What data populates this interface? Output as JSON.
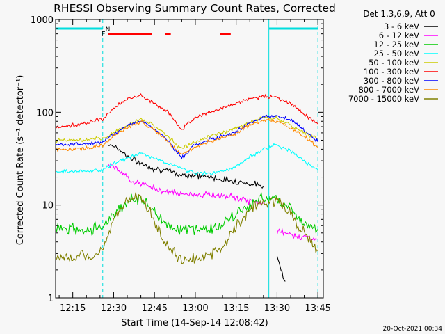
{
  "chart_data": {
    "type": "line",
    "title": "RHESSI Observing Summary Count Rates, Corrected",
    "xlabel": "Start Time (14-Sep-14 12:08:42)",
    "ylabel": "Corrected Count Rate (s⁻¹ detector⁻¹)",
    "y_scale": "log",
    "ylim": [
      1,
      1000
    ],
    "xlim": [
      "12:08:42",
      "13:47:00"
    ],
    "x_ticks": [
      "12:15",
      "12:30",
      "12:45",
      "13:00",
      "13:15",
      "13:30",
      "13:45"
    ],
    "y_ticks": [
      "1",
      "10",
      "100",
      "1000"
    ],
    "legend_title": "Det 1,3,6,9, Att 0",
    "legend_position": "right",
    "timestamp": "20-Oct-2021 00:34",
    "flag_labels": {
      "night": "N",
      "flare": "F"
    },
    "night_intervals": [
      [
        "12:08:42",
        "12:26:00"
      ],
      [
        "13:27:00",
        "13:45:00"
      ]
    ],
    "flare_intervals": [
      [
        "12:28:00",
        "12:44:00"
      ],
      [
        "12:49:00",
        "12:51:00"
      ],
      [
        "13:09:00",
        "13:13:00"
      ]
    ],
    "series": [
      {
        "name": "3 - 6 keV",
        "color": "#000000",
        "x": [
          "12:26",
          "12:28",
          "12:30",
          "12:33",
          "12:36",
          "12:40",
          "12:45",
          "12:50",
          "12:55",
          "13:00",
          "13:05",
          "13:10",
          "13:15",
          "13:20",
          "13:25",
          "13:27",
          "13:30",
          "13:33"
        ],
        "values": [
          null,
          45,
          44,
          38,
          32,
          28,
          25,
          23,
          21,
          21,
          20,
          19,
          18,
          17,
          16,
          null,
          2.8,
          1.5
        ]
      },
      {
        "name": "6 - 12 keV",
        "color": "#ff00ff",
        "x": [
          "12:26",
          "12:28",
          "12:30",
          "12:33",
          "12:36",
          "12:40",
          "12:45",
          "12:50",
          "12:55",
          "13:00",
          "13:05",
          "13:10",
          "13:15",
          "13:20",
          "13:25",
          "13:27",
          "13:30",
          "13:35",
          "13:40",
          "13:45"
        ],
        "values": [
          null,
          28,
          26,
          22,
          19,
          17,
          15,
          14,
          13,
          13,
          13,
          12.5,
          12,
          11,
          10.5,
          null,
          5.2,
          4.8,
          4.5,
          4.3
        ]
      },
      {
        "name": "12 - 25 keV",
        "color": "#00cc00",
        "x": [
          "12:08:42",
          "12:15",
          "12:22",
          "12:26",
          "12:30",
          "12:35",
          "12:40",
          "12:45",
          "12:50",
          "12:55",
          "13:00",
          "13:05",
          "13:10",
          "13:15",
          "13:20",
          "13:25",
          "13:30",
          "13:35",
          "13:40",
          "13:45"
        ],
        "values": [
          5.5,
          5.5,
          5.5,
          6,
          8,
          11,
          12,
          8.5,
          6,
          5.5,
          5.5,
          5.5,
          6,
          8,
          10,
          12,
          12,
          9,
          6.5,
          5.5
        ]
      },
      {
        "name": "25 - 50 keV",
        "color": "#00ffff",
        "x": [
          "12:08:42",
          "12:15",
          "12:20",
          "12:26",
          "12:30",
          "12:35",
          "12:40",
          "12:45",
          "12:50",
          "12:55",
          "13:00",
          "13:05",
          "13:10",
          "13:15",
          "13:20",
          "13:25",
          "13:30",
          "13:35",
          "13:40",
          "13:45"
        ],
        "values": [
          23,
          23,
          23,
          24,
          28,
          32,
          36,
          32,
          28,
          25,
          22,
          22,
          23,
          26,
          33,
          40,
          45,
          38,
          30,
          24
        ]
      },
      {
        "name": "50 - 100 keV",
        "color": "#cccc00",
        "x": [
          "12:08:42",
          "12:15",
          "12:20",
          "12:26",
          "12:30",
          "12:35",
          "12:40",
          "12:45",
          "12:50",
          "12:55",
          "13:00",
          "13:05",
          "13:10",
          "13:15",
          "13:20",
          "13:25",
          "13:30",
          "13:35",
          "13:40",
          "13:45"
        ],
        "values": [
          50,
          50,
          50,
          52,
          60,
          72,
          85,
          72,
          55,
          40,
          48,
          55,
          60,
          68,
          78,
          88,
          85,
          72,
          60,
          52
        ]
      },
      {
        "name": "100 - 300 keV",
        "color": "#ff0000",
        "x": [
          "12:08:42",
          "12:15",
          "12:20",
          "12:26",
          "12:30",
          "12:35",
          "12:40",
          "12:45",
          "12:50",
          "12:55",
          "13:00",
          "13:05",
          "13:10",
          "13:15",
          "13:20",
          "13:25",
          "13:30",
          "13:35",
          "13:40",
          "13:45"
        ],
        "values": [
          70,
          72,
          76,
          85,
          110,
          140,
          150,
          125,
          100,
          65,
          90,
          100,
          110,
          125,
          140,
          148,
          145,
          125,
          95,
          75
        ]
      },
      {
        "name": "300 - 800 keV",
        "color": "#0000ff",
        "x": [
          "12:08:42",
          "12:15",
          "12:20",
          "12:26",
          "12:30",
          "12:35",
          "12:40",
          "12:45",
          "12:50",
          "12:55",
          "13:00",
          "13:05",
          "13:10",
          "13:15",
          "13:20",
          "13:25",
          "13:30",
          "13:35",
          "13:40",
          "13:45"
        ],
        "values": [
          45,
          45,
          46,
          48,
          58,
          72,
          82,
          65,
          50,
          32,
          45,
          50,
          55,
          62,
          75,
          90,
          92,
          82,
          65,
          48
        ]
      },
      {
        "name": "800 - 7000 keV",
        "color": "#ff8800",
        "x": [
          "12:08:42",
          "12:15",
          "12:20",
          "12:26",
          "12:30",
          "12:35",
          "12:40",
          "12:45",
          "12:50",
          "12:55",
          "13:00",
          "13:05",
          "13:10",
          "13:15",
          "13:20",
          "13:25",
          "13:30",
          "13:35",
          "13:40",
          "13:45"
        ],
        "values": [
          40,
          40,
          41,
          44,
          55,
          68,
          80,
          65,
          48,
          35,
          42,
          48,
          53,
          60,
          72,
          82,
          80,
          68,
          55,
          42
        ]
      },
      {
        "name": "7000 - 15000 keV",
        "color": "#808000",
        "x": [
          "12:08:42",
          "12:15",
          "12:22",
          "12:26",
          "12:30",
          "12:35",
          "12:40",
          "12:45",
          "12:50",
          "12:55",
          "13:00",
          "13:05",
          "13:10",
          "13:15",
          "13:20",
          "13:25",
          "13:30",
          "13:35",
          "13:40",
          "13:45"
        ],
        "values": [
          2.7,
          2.7,
          2.8,
          3.5,
          7,
          11,
          12,
          7,
          3.5,
          2.5,
          2.6,
          2.9,
          3.5,
          6,
          9,
          11,
          11,
          8,
          5,
          3.2
        ]
      }
    ]
  }
}
